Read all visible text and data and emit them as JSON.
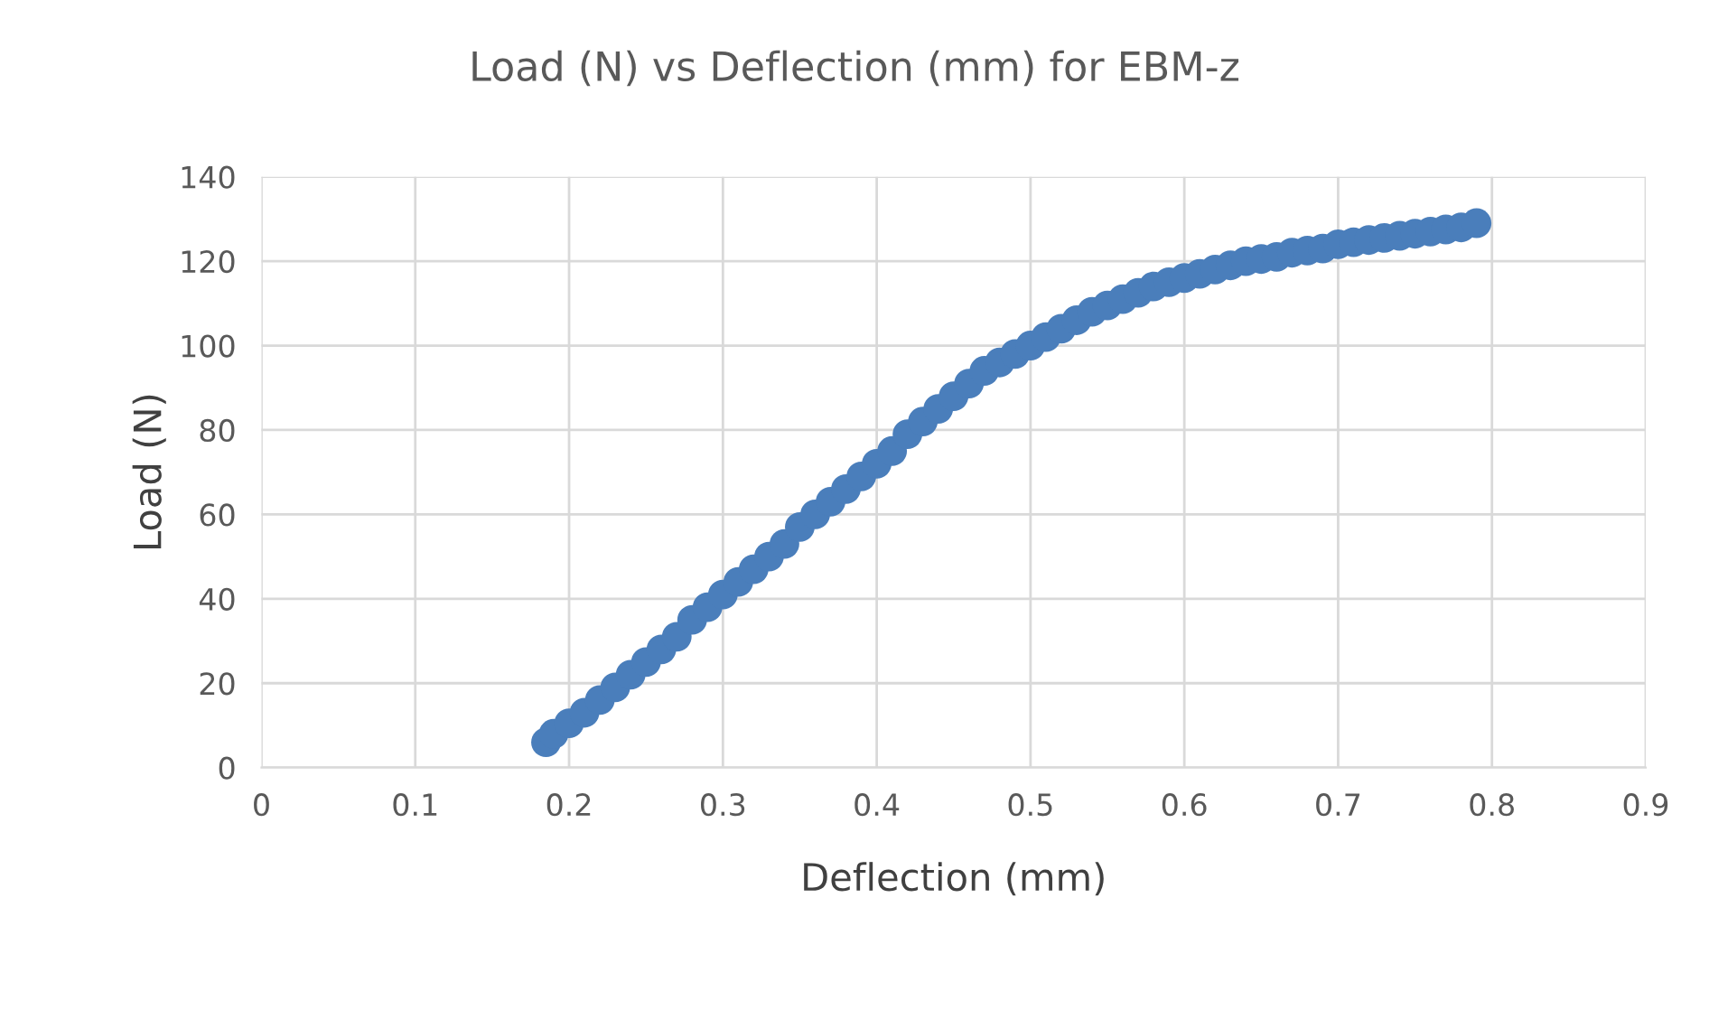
{
  "chart_data": {
    "type": "scatter",
    "title": "Load (N) vs Deflection (mm) for EBM-z",
    "xlabel": "Deflection (mm)",
    "ylabel": "Load (N)",
    "x": [
      0.185,
      0.19,
      0.2,
      0.21,
      0.22,
      0.23,
      0.24,
      0.25,
      0.26,
      0.27,
      0.28,
      0.29,
      0.3,
      0.31,
      0.32,
      0.33,
      0.34,
      0.35,
      0.36,
      0.37,
      0.38,
      0.39,
      0.4,
      0.41,
      0.42,
      0.43,
      0.44,
      0.45,
      0.46,
      0.47,
      0.48,
      0.49,
      0.5,
      0.51,
      0.52,
      0.53,
      0.54,
      0.55,
      0.56,
      0.57,
      0.58,
      0.59,
      0.6,
      0.61,
      0.62,
      0.63,
      0.64,
      0.65,
      0.66,
      0.67,
      0.68,
      0.69,
      0.7,
      0.71,
      0.72,
      0.73,
      0.74,
      0.75,
      0.76,
      0.77,
      0.78,
      0.79
    ],
    "series": [
      {
        "color": "#4a7ebb",
        "values": [
          6,
          8,
          10.5,
          13,
          16,
          19,
          22,
          25,
          28,
          31,
          35,
          38,
          41,
          44,
          47,
          50,
          53,
          57,
          60,
          63,
          66,
          69,
          72,
          75,
          79,
          82,
          85,
          88,
          91,
          94,
          96,
          98,
          100,
          102,
          104,
          106,
          108,
          109.5,
          111,
          112.5,
          114,
          115,
          116,
          117,
          118,
          119,
          120,
          120.5,
          121,
          122,
          122.5,
          123,
          124,
          124.5,
          125,
          125.5,
          126,
          126.5,
          127,
          127.5,
          128,
          129
        ]
      }
    ],
    "xlim": [
      0,
      0.9
    ],
    "xticks": [
      0,
      0.1,
      0.2,
      0.3,
      0.4,
      0.5,
      0.6,
      0.7,
      0.8,
      0.9
    ],
    "ylim": [
      0,
      140
    ],
    "yticks": [
      0,
      20,
      40,
      60,
      80,
      100,
      120,
      140
    ],
    "grid": true,
    "marker": "circle"
  }
}
